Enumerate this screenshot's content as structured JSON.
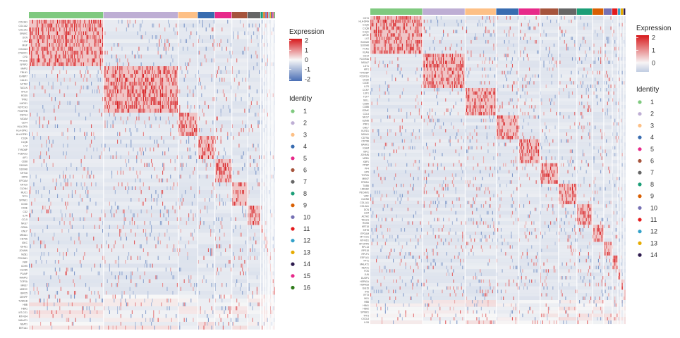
{
  "chart_data": [
    {
      "type": "heatmap",
      "title": "",
      "legend_expression_title": "Expression",
      "color_scale": {
        "ticks": [
          2,
          1,
          0,
          -1,
          -2
        ],
        "tick_labels": [
          "2",
          "1",
          "0",
          "-1",
          "-2"
        ],
        "high_color": "#d7191c",
        "mid_color": "#f7f7f7",
        "low_color": "#4a6fb5"
      },
      "legend_identity_title": "Identity",
      "identities": [
        "1",
        "2",
        "3",
        "4",
        "5",
        "6",
        "7",
        "8",
        "9",
        "10",
        "11",
        "12",
        "13",
        "14",
        "15",
        "16"
      ],
      "identity_colors": [
        "#7fc97f",
        "#beaed4",
        "#fdc086",
        "#386cb0",
        "#e7298a",
        "#a6543c",
        "#666666",
        "#1b9e77",
        "#d95f02",
        "#7570b3",
        "#e41a1c",
        "#33a1c9",
        "#e6ab02",
        "#2c1a4d",
        "#e7298a",
        "#2f7a1a"
      ],
      "cluster_widths": [
        114,
        114,
        30,
        26,
        26,
        24,
        20,
        4,
        3,
        3,
        2,
        2,
        2,
        2,
        2,
        2
      ],
      "rows": 80,
      "genes": [
        "COL3A1",
        "COL1A2",
        "COL1A1",
        "SPARC",
        "DCN",
        "LUM",
        "MGP",
        "COL6A3",
        "CTHRC1",
        "CFD",
        "PTGDS",
        "SFRP2",
        "MMP2",
        "FBLN1",
        "IGFBP7",
        "CALD1",
        "ACTA2",
        "TAGLN",
        "MYL9",
        "RGS5",
        "TPM2",
        "LMOD1",
        "NOTCH3",
        "PDGFRB",
        "CSPG4",
        "MCAM",
        "CD74",
        "HLA-DRA",
        "HLA-DPA1",
        "HLA-DPB1",
        "C1QA",
        "C1QB",
        "LYZ",
        "TYROBP",
        "FCER1G",
        "AIF1",
        "CD68",
        "S100A9",
        "S100A8",
        "KRT18",
        "KRT8",
        "EPCAM",
        "KRT19",
        "CLDN4",
        "MUC1",
        "TFF3",
        "SPINK1",
        "CD3D",
        "CD3E",
        "CD2",
        "IL7R",
        "CCL5",
        "NKG7",
        "GZMA",
        "GNLY",
        "MS4A1",
        "CD79A",
        "IGKC",
        "IGHG1",
        "JCHAIN",
        "MZB1",
        "PECAM1",
        "VWF",
        "CDH5",
        "CLDN5",
        "PLVAP",
        "RAMP2",
        "TOP2A",
        "MKI67",
        "UBE2C",
        "BIRC5",
        "CENPF",
        "TUBA1B",
        "HBB",
        "HBA1",
        "MT-CO1",
        "MT-ND4",
        "MALAT1",
        "NEAT1",
        "EEF1A1"
      ]
    },
    {
      "type": "heatmap",
      "title": "",
      "legend_expression_title": "Expression",
      "color_scale": {
        "ticks": [
          2,
          1,
          0
        ],
        "tick_labels": [
          "2",
          "1",
          "0"
        ],
        "high_color": "#d7191c",
        "mid_color": "#f7f7f7",
        "low_color": "#4a6fb5"
      },
      "legend_identity_title": "Identity",
      "identities": [
        "1",
        "2",
        "3",
        "4",
        "5",
        "6",
        "7",
        "8",
        "9",
        "10",
        "11",
        "12",
        "13",
        "14"
      ],
      "identity_colors": [
        "#7fc97f",
        "#beaed4",
        "#fdc086",
        "#386cb0",
        "#e7298a",
        "#a6543c",
        "#666666",
        "#1b9e77",
        "#d95f02",
        "#7570b3",
        "#e41a1c",
        "#33a1c9",
        "#e6ab02",
        "#2c1a4d"
      ],
      "cluster_widths": [
        74,
        60,
        44,
        32,
        30,
        26,
        26,
        22,
        16,
        12,
        8,
        4,
        4,
        3
      ],
      "rows": 90,
      "genes": [
        "CD74",
        "HLA-DRA",
        "C1QA",
        "C1QB",
        "C1QC",
        "APOE",
        "LYZ",
        "S100A9",
        "S100A8",
        "FCN1",
        "VCAN",
        "CD14",
        "FCGR3A",
        "MS4A7",
        "LST1",
        "AIF1",
        "TYROBP",
        "FCER1G",
        "CD3D",
        "CD3E",
        "IL7R",
        "CCR7",
        "LEF1",
        "TCF7",
        "SELL",
        "CD8A",
        "CD8B",
        "GZMK",
        "CCL5",
        "NKG7",
        "GZMB",
        "PRF1",
        "GNLY",
        "KLRD1",
        "MS4A1",
        "CD79A",
        "CD79B",
        "BANK1",
        "IGHM",
        "IGKC",
        "JCHAIN",
        "MZB1",
        "XBP1",
        "PPBP",
        "PF4",
        "GP9",
        "TOP2A",
        "MKI67",
        "STMN1",
        "TUBB",
        "HMGB2",
        "PECAM1",
        "VWF",
        "CLDN5",
        "COL1A1",
        "COL3A1",
        "DCN",
        "LUM",
        "ACTA2",
        "TAGLN",
        "RGS5",
        "KRT18",
        "KRT8",
        "EPCAM",
        "MT-CO1",
        "MT-ND1",
        "MT-ATP6",
        "RPL13",
        "RPS18",
        "RPLP1",
        "EEF1A1",
        "TPT1",
        "MALAT1",
        "NEAT1",
        "FOS",
        "JUN",
        "DUSP1",
        "HSPA1A",
        "HSPA1B",
        "ISG15",
        "IFI6",
        "IFIT3",
        "MX1",
        "HBB",
        "HBA1",
        "HBA2",
        "SPINK1",
        "TFF3",
        "CXCL8",
        "IL1B"
      ]
    }
  ]
}
